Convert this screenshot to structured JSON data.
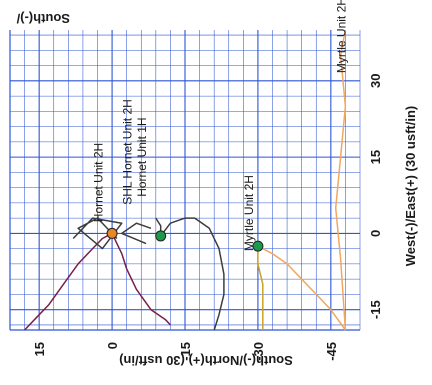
{
  "chart_data": {
    "type": "line",
    "top_left_label": "South(-)/",
    "x_axis": {
      "label": "South(-)/North(+) (30 usft/in)",
      "ticks": [
        15,
        0,
        -15,
        -30,
        -45
      ],
      "tick_labels": [
        "15",
        "0",
        "-15",
        "-30",
        "-45"
      ],
      "range": [
        21,
        -51
      ]
    },
    "y_axis": {
      "label": "West(-)/East(+) (30 usft/in)",
      "ticks": [
        -15,
        0,
        15,
        30
      ],
      "tick_labels": [
        "-15",
        "0",
        "15",
        "30"
      ],
      "range": [
        -19,
        40
      ]
    },
    "grid": true,
    "grid_color": "#2f55d4",
    "labels": [
      {
        "text": "Hornet Unit 2H",
        "ns": 2,
        "ew": 10
      },
      {
        "text": "SHL Hornet Unit 2H",
        "ns": -4,
        "ew": 16
      },
      {
        "text": "Hornet Unit 1H",
        "ns": -7,
        "ew": 15
      },
      {
        "text": "Myrtle Unit 2H",
        "ns": -29,
        "ew": 4
      },
      {
        "text": "Myrtle Unit 2H",
        "ns": -48,
        "ew": 39
      }
    ],
    "markers": [
      {
        "name": "Hornet Unit 2H",
        "ns": 0,
        "ew": 0,
        "color": "#e8862a"
      },
      {
        "name": "Hornet Unit 1H",
        "ns": -10,
        "ew": -0.5,
        "color": "#1a9a4a"
      },
      {
        "name": "Myrtle Unit 2H",
        "ns": -30,
        "ew": -2.5,
        "color": "#1a9a4a"
      }
    ],
    "series": [
      {
        "color": "#7a1f4a",
        "points": [
          [
            0,
            0
          ],
          [
            -1,
            -2
          ],
          [
            -2,
            -4
          ],
          [
            -3,
            -7
          ],
          [
            -5,
            -11
          ],
          [
            -8,
            -15
          ],
          [
            -11,
            -17
          ],
          [
            -12,
            -18
          ]
        ]
      },
      {
        "color": "#7a1f4a",
        "points": [
          [
            0,
            0
          ],
          [
            2,
            -1
          ],
          [
            4,
            -3
          ],
          [
            7,
            -6
          ],
          [
            10,
            -10
          ],
          [
            13,
            -14
          ],
          [
            16,
            -17
          ],
          [
            18,
            -19
          ]
        ]
      },
      {
        "color": "#3d3d3d",
        "points": [
          [
            -10,
            -0.5
          ],
          [
            -12,
            2
          ],
          [
            -15,
            3
          ],
          [
            -17,
            3
          ],
          [
            -20,
            1
          ],
          [
            -22,
            -3
          ],
          [
            -23,
            -8
          ],
          [
            -23,
            -12
          ],
          [
            -22,
            -16
          ],
          [
            -21,
            -19
          ]
        ]
      },
      {
        "color": "#3d3d3d",
        "points": [
          [
            -9,
            3
          ],
          [
            -10,
            1.5
          ],
          [
            -10,
            -0.5
          ]
        ]
      },
      {
        "color": "#c9a227",
        "points": [
          [
            -30,
            -2.5
          ],
          [
            -30,
            -6
          ],
          [
            -31,
            -10
          ],
          [
            -31,
            -16
          ],
          [
            -31,
            -19
          ]
        ]
      },
      {
        "color": "#f0a860",
        "points": [
          [
            -30,
            -2.5
          ],
          [
            -33,
            -4
          ],
          [
            -36,
            -6
          ],
          [
            -39,
            -9
          ],
          [
            -42,
            -12
          ],
          [
            -45,
            -15
          ],
          [
            -48,
            -19
          ]
        ]
      },
      {
        "color": "#f0a860",
        "points": [
          [
            -48,
            -19
          ],
          [
            -47,
            -5
          ],
          [
            -46,
            5
          ],
          [
            -47,
            15
          ],
          [
            -48,
            25
          ],
          [
            -47,
            35
          ],
          [
            -48,
            40
          ]
        ]
      },
      {
        "color": "#3d3d3d",
        "points": [
          [
            8,
            -1
          ],
          [
            4,
            3
          ],
          [
            -2,
            2
          ],
          [
            2,
            -3
          ],
          [
            7,
            1
          ],
          [
            3,
            3
          ],
          [
            -1,
            -1
          ]
        ]
      },
      {
        "color": "#3d3d3d",
        "points": [
          [
            -7,
            -2
          ],
          [
            -2,
            0
          ],
          [
            -5,
            2
          ],
          [
            -8,
            1
          ]
        ]
      }
    ]
  }
}
